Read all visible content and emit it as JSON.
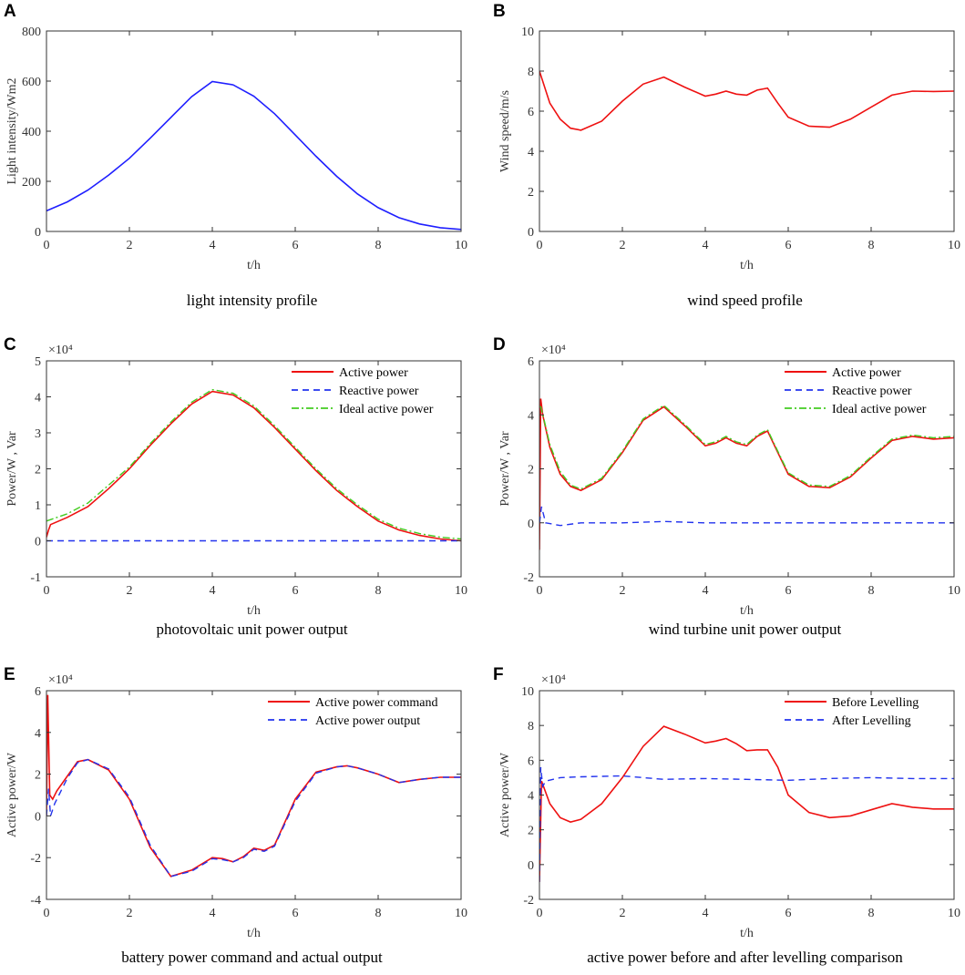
{
  "chart_data": [
    {
      "panel": "A",
      "type": "line",
      "caption": "light intensity profile",
      "xlabel": "t/h",
      "ylabel": "Light intensity/Wm2",
      "xlim": [
        0,
        10
      ],
      "ylim": [
        0,
        800
      ],
      "xticks": [
        0,
        2,
        4,
        6,
        8,
        10
      ],
      "yticks": [
        0,
        200,
        400,
        600,
        800
      ],
      "series": [
        {
          "name": "Light intensity",
          "color": "#1f1fff",
          "dash": "solid",
          "x": [
            0,
            0.5,
            1,
            1.5,
            2,
            2.5,
            3,
            3.5,
            4,
            4.5,
            5,
            5.5,
            6,
            6.5,
            7,
            7.5,
            8,
            8.5,
            9,
            9.5,
            10
          ],
          "y": [
            82,
            118,
            165,
            225,
            292,
            372,
            455,
            538,
            598,
            585,
            540,
            470,
            385,
            300,
            220,
            150,
            95,
            55,
            30,
            15,
            8
          ]
        }
      ]
    },
    {
      "panel": "B",
      "type": "line",
      "caption": "wind speed profile",
      "xlabel": "t/h",
      "ylabel": "Wind speed/m/s",
      "xlim": [
        0,
        10
      ],
      "ylim": [
        0,
        10
      ],
      "xticks": [
        0,
        2,
        4,
        6,
        8,
        10
      ],
      "yticks": [
        0,
        2,
        4,
        6,
        8,
        10
      ],
      "series": [
        {
          "name": "Wind speed",
          "color": "#ee1111",
          "dash": "solid",
          "x": [
            0,
            0.25,
            0.5,
            0.75,
            1,
            1.5,
            2,
            2.5,
            3,
            3.5,
            4,
            4.25,
            4.5,
            4.75,
            5,
            5.25,
            5.5,
            5.75,
            6,
            6.5,
            7,
            7.5,
            8,
            8.5,
            9,
            9.5,
            10
          ],
          "y": [
            8.0,
            6.4,
            5.6,
            5.15,
            5.05,
            5.5,
            6.5,
            7.35,
            7.7,
            7.2,
            6.75,
            6.85,
            7.0,
            6.85,
            6.8,
            7.05,
            7.15,
            6.4,
            5.7,
            5.25,
            5.2,
            5.6,
            6.2,
            6.8,
            7.0,
            6.98,
            7.0
          ]
        }
      ]
    },
    {
      "panel": "C",
      "type": "line",
      "caption": "photovoltaic unit power output",
      "xlabel": "t/h",
      "ylabel": "Power/W ,  Var",
      "multiplier": "×10⁴",
      "xlim": [
        0,
        10
      ],
      "ylim": [
        -1,
        5
      ],
      "xticks": [
        0,
        2,
        4,
        6,
        8,
        10
      ],
      "yticks": [
        -1,
        0,
        1,
        2,
        3,
        4,
        5
      ],
      "legend": [
        "Active power",
        "Reactive power",
        "Ideal active power"
      ],
      "series": [
        {
          "name": "Active power",
          "color": "#ee1111",
          "dash": "solid",
          "x": [
            0,
            0.05,
            0.1,
            0.5,
            1,
            1.5,
            2,
            2.5,
            3,
            3.5,
            4,
            4.5,
            5,
            5.5,
            6,
            6.5,
            7,
            7.5,
            8,
            8.5,
            9,
            9.5,
            10
          ],
          "y": [
            0.1,
            0.3,
            0.45,
            0.65,
            0.95,
            1.45,
            2.0,
            2.65,
            3.25,
            3.8,
            4.15,
            4.05,
            3.7,
            3.15,
            2.55,
            1.95,
            1.4,
            0.95,
            0.55,
            0.3,
            0.15,
            0.05,
            0.0
          ]
        },
        {
          "name": "Reactive power",
          "color": "#2233ee",
          "dash": "7,5",
          "x": [
            0,
            2,
            4,
            6,
            8,
            10
          ],
          "y": [
            0,
            0,
            0,
            0,
            0,
            0
          ]
        },
        {
          "name": "Ideal active power",
          "color": "#44cc22",
          "dash": "8,3,2,3",
          "x": [
            0,
            0.5,
            1,
            1.5,
            2,
            2.5,
            3,
            3.5,
            4,
            4.5,
            5,
            5.5,
            6,
            6.5,
            7,
            7.5,
            8,
            8.5,
            9,
            9.5,
            10
          ],
          "y": [
            0.55,
            0.75,
            1.05,
            1.55,
            2.05,
            2.7,
            3.3,
            3.85,
            4.2,
            4.1,
            3.75,
            3.2,
            2.6,
            2.0,
            1.45,
            1.0,
            0.6,
            0.35,
            0.2,
            0.1,
            0.05
          ]
        }
      ]
    },
    {
      "panel": "D",
      "type": "line",
      "caption": "wind turbine unit power output",
      "xlabel": "t/h",
      "ylabel": "Power/W ,  Var",
      "multiplier": "×10⁴",
      "xlim": [
        0,
        10
      ],
      "ylim": [
        -2,
        6
      ],
      "xticks": [
        0,
        2,
        4,
        6,
        8,
        10
      ],
      "yticks": [
        -2,
        0,
        2,
        4,
        6
      ],
      "legend": [
        "Active power",
        "Reactive power",
        "Ideal active power"
      ],
      "series": [
        {
          "name": "Active power",
          "color": "#ee1111",
          "dash": "solid",
          "x": [
            0,
            0.03,
            0.08,
            0.25,
            0.5,
            0.75,
            1,
            1.5,
            2,
            2.5,
            3,
            3.5,
            4,
            4.25,
            4.5,
            4.75,
            5,
            5.25,
            5.5,
            5.75,
            6,
            6.5,
            7,
            7.5,
            8,
            8.5,
            9,
            9.5,
            10
          ],
          "y": [
            -1.0,
            4.6,
            4.0,
            2.8,
            1.8,
            1.35,
            1.2,
            1.6,
            2.6,
            3.8,
            4.3,
            3.6,
            2.85,
            2.95,
            3.15,
            2.95,
            2.85,
            3.2,
            3.4,
            2.6,
            1.8,
            1.35,
            1.3,
            1.7,
            2.4,
            3.05,
            3.2,
            3.1,
            3.15
          ]
        },
        {
          "name": "Reactive power",
          "color": "#2233ee",
          "dash": "7,5",
          "x": [
            0,
            0.05,
            0.15,
            0.5,
            1,
            2,
            3,
            4,
            5,
            6,
            7,
            8,
            9,
            10
          ],
          "y": [
            0,
            0.6,
            0.0,
            -0.1,
            0,
            0,
            0.05,
            0,
            0,
            0,
            0,
            0,
            0,
            0
          ]
        },
        {
          "name": "Ideal active power",
          "color": "#44cc22",
          "dash": "8,3,2,3",
          "x": [
            0,
            0.03,
            0.1,
            0.25,
            0.5,
            0.75,
            1,
            1.5,
            2,
            2.5,
            3,
            3.5,
            4,
            4.25,
            4.5,
            4.75,
            5,
            5.25,
            5.5,
            5.75,
            6,
            6.5,
            7,
            7.5,
            8,
            8.5,
            9,
            9.5,
            10
          ],
          "y": [
            4.3,
            4.3,
            3.9,
            2.9,
            1.9,
            1.4,
            1.25,
            1.65,
            2.65,
            3.85,
            4.35,
            3.65,
            2.9,
            3.0,
            3.2,
            3.0,
            2.9,
            3.25,
            3.45,
            2.65,
            1.85,
            1.4,
            1.35,
            1.75,
            2.45,
            3.1,
            3.25,
            3.15,
            3.2
          ]
        }
      ]
    },
    {
      "panel": "E",
      "type": "line",
      "caption": "battery power command and actual output",
      "xlabel": "t/h",
      "ylabel": "Active power/W",
      "multiplier": "×10⁴",
      "xlim": [
        0,
        10
      ],
      "ylim": [
        -4,
        6
      ],
      "xticks": [
        0,
        2,
        4,
        6,
        8,
        10
      ],
      "yticks": [
        -4,
        -2,
        0,
        2,
        4,
        6
      ],
      "legend": [
        "Active power command",
        "Active power output"
      ],
      "series": [
        {
          "name": "Active power command",
          "color": "#ee1111",
          "dash": "solid",
          "x": [
            0,
            0.03,
            0.08,
            0.15,
            0.25,
            0.5,
            0.75,
            1,
            1.5,
            2,
            2.5,
            3,
            3.5,
            4,
            4.25,
            4.5,
            4.75,
            5,
            5.25,
            5.5,
            6,
            6.5,
            7,
            7.25,
            7.5,
            8,
            8.5,
            9,
            9.5,
            10
          ],
          "y": [
            0,
            5.8,
            1.0,
            0.8,
            1.2,
            1.9,
            2.6,
            2.7,
            2.2,
            0.8,
            -1.5,
            -2.9,
            -2.6,
            -2.0,
            -2.05,
            -2.2,
            -1.95,
            -1.55,
            -1.65,
            -1.4,
            0.8,
            2.1,
            2.35,
            2.4,
            2.3,
            2.0,
            1.6,
            1.75,
            1.85,
            1.85
          ]
        },
        {
          "name": "Active power output",
          "color": "#2233ee",
          "dash": "7,5",
          "x": [
            0,
            0.05,
            0.1,
            0.2,
            0.3,
            0.5,
            0.75,
            1,
            1.5,
            2,
            2.5,
            3,
            3.5,
            4,
            4.25,
            4.5,
            4.75,
            5,
            5.25,
            5.5,
            6,
            6.5,
            7,
            7.25,
            7.5,
            8,
            8.5,
            9,
            9.5,
            10
          ],
          "y": [
            0,
            1.3,
            0.0,
            0.6,
            1.0,
            1.8,
            2.55,
            2.7,
            2.25,
            0.9,
            -1.4,
            -2.9,
            -2.65,
            -2.05,
            -2.1,
            -2.2,
            -2.0,
            -1.6,
            -1.7,
            -1.45,
            0.7,
            2.05,
            2.35,
            2.4,
            2.3,
            2.0,
            1.6,
            1.75,
            1.85,
            1.85
          ]
        }
      ]
    },
    {
      "panel": "F",
      "type": "line",
      "caption": "active power before and after levelling comparison",
      "xlabel": "t/h",
      "ylabel": "Active power/W",
      "multiplier": "×10⁴",
      "xlim": [
        0,
        10
      ],
      "ylim": [
        -2,
        10
      ],
      "xticks": [
        0,
        2,
        4,
        6,
        8,
        10
      ],
      "yticks": [
        -2,
        0,
        2,
        4,
        6,
        8,
        10
      ],
      "legend": [
        "Before Levelling",
        "After Levelling"
      ],
      "series": [
        {
          "name": "Before Levelling",
          "color": "#ee1111",
          "dash": "solid",
          "x": [
            0,
            0.05,
            0.25,
            0.5,
            0.75,
            1,
            1.5,
            2,
            2.5,
            3,
            3.5,
            4,
            4.25,
            4.5,
            4.75,
            5,
            5.25,
            5.5,
            5.75,
            6,
            6.5,
            7,
            7.5,
            8,
            8.5,
            9,
            9.5,
            10
          ],
          "y": [
            -1.0,
            4.8,
            3.5,
            2.7,
            2.45,
            2.6,
            3.5,
            5.0,
            6.8,
            7.95,
            7.5,
            7.0,
            7.1,
            7.25,
            6.95,
            6.55,
            6.6,
            6.6,
            5.6,
            4.0,
            3.0,
            2.7,
            2.8,
            3.15,
            3.5,
            3.3,
            3.2,
            3.2
          ]
        },
        {
          "name": "After Levelling",
          "color": "#2233ee",
          "dash": "7,5",
          "x": [
            0,
            0.03,
            0.08,
            0.15,
            0.5,
            1,
            2,
            3,
            4,
            5,
            6,
            7,
            8,
            9,
            10
          ],
          "y": [
            -1.0,
            5.6,
            4.5,
            4.8,
            5.0,
            5.05,
            5.1,
            4.9,
            4.95,
            4.9,
            4.85,
            4.95,
            5.0,
            4.95,
            4.95
          ]
        }
      ]
    }
  ]
}
